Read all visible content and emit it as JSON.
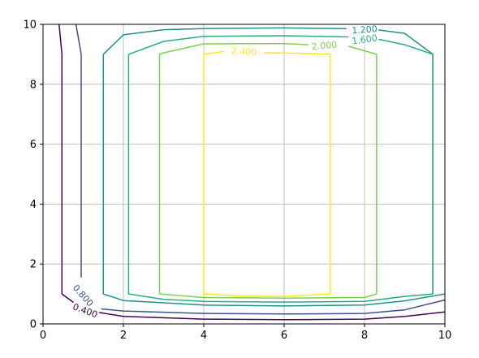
{
  "chart_data": {
    "type": "contour",
    "title": "",
    "xlabel": "",
    "ylabel": "",
    "xlim": [
      0,
      10
    ],
    "ylim": [
      0,
      10
    ],
    "grid": true,
    "x_ticks": [
      0,
      2,
      4,
      6,
      8,
      10
    ],
    "y_ticks": [
      0,
      2,
      4,
      6,
      8,
      10
    ],
    "x_tick_labels": [
      "0",
      "2",
      "4",
      "6",
      "8",
      "10"
    ],
    "y_tick_labels": [
      "0",
      "2",
      "4",
      "6",
      "8",
      "10"
    ],
    "levels": [
      {
        "level": 0.4,
        "label": "0.400",
        "color": "#440154",
        "segments": [
          [
            [
              0.4,
              10
            ],
            [
              0.47,
              9
            ],
            [
              0.47,
              1
            ],
            [
              0.9,
              0.58
            ],
            [
              1.4,
              0.38
            ],
            [
              2,
              0.25
            ],
            [
              4,
              0.16
            ],
            [
              6,
              0.14
            ],
            [
              8,
              0.16
            ],
            [
              9,
              0.25
            ],
            [
              10,
              0.4
            ]
          ]
        ]
      },
      {
        "level": 0.8,
        "label": "0.800",
        "color": "#3b528b",
        "segments": [
          [
            [
              0.82,
              10
            ],
            [
              0.95,
              9
            ],
            [
              0.95,
              1.55
            ]
          ],
          [
            [
              1.45,
              0.5
            ],
            [
              2,
              0.43
            ],
            [
              4,
              0.35
            ],
            [
              6,
              0.33
            ],
            [
              8,
              0.35
            ],
            [
              9,
              0.47
            ],
            [
              10,
              0.8
            ]
          ]
        ]
      },
      {
        "level": 1.2,
        "label": "1.200",
        "color": "#21908d",
        "segments": [
          [
            [
              7.55,
              9.86
            ],
            [
              6,
              9.88
            ],
            [
              4,
              9.86
            ],
            [
              3,
              9.82
            ],
            [
              2,
              9.65
            ],
            [
              1.5,
              9
            ],
            [
              1.5,
              1
            ],
            [
              2,
              0.78
            ],
            [
              4,
              0.63
            ],
            [
              6,
              0.6
            ],
            [
              8,
              0.63
            ],
            [
              9,
              0.77
            ],
            [
              10,
              1
            ]
          ]
        ],
        "tail_segments": [
          [
            [
              8.3,
              9.82
            ],
            [
              9,
              9.7
            ],
            [
              9.7,
              9
            ],
            [
              9.7,
              1
            ]
          ]
        ]
      },
      {
        "level": 1.6,
        "label": "1.600",
        "color": "#27ad81",
        "segments": [
          [
            [
              7.6,
              9.58
            ],
            [
              6,
              9.62
            ],
            [
              4,
              9.6
            ],
            [
              3,
              9.43
            ],
            [
              2.13,
              9
            ],
            [
              2.13,
              1
            ],
            [
              3,
              0.82
            ],
            [
              4,
              0.75
            ],
            [
              6,
              0.73
            ],
            [
              8,
              0.75
            ],
            [
              9,
              0.92
            ],
            [
              9.7,
              1
            ]
          ]
        ],
        "tail_segments": [
          [
            [
              8.35,
              9.5
            ],
            [
              9,
              9.32
            ],
            [
              9.7,
              9
            ]
          ]
        ]
      },
      {
        "level": 2.0,
        "label": "2.000",
        "color": "#7ad151",
        "segments": [
          [
            [
              6.6,
              9.32
            ],
            [
              6,
              9.36
            ],
            [
              4,
              9.35
            ],
            [
              3,
              9.05
            ],
            [
              2.9,
              9
            ],
            [
              2.9,
              1
            ],
            [
              4,
              0.88
            ],
            [
              6,
              0.86
            ],
            [
              8,
              0.88
            ],
            [
              8.3,
              1
            ],
            [
              8.3,
              9
            ],
            [
              7.6,
              9.27
            ]
          ]
        ]
      },
      {
        "level": 2.4,
        "label": "2.400",
        "color": "#fde725",
        "segments": [
          [
            [
              4,
              9
            ],
            [
              4,
              1
            ],
            [
              5,
              0.93
            ],
            [
              6,
              0.92
            ],
            [
              7.15,
              1
            ],
            [
              7.15,
              9
            ],
            [
              6,
              9.05
            ],
            [
              5.5,
              9.05
            ]
          ],
          [
            [
              4,
              9
            ],
            [
              4.5,
              9.1
            ]
          ]
        ]
      }
    ],
    "contour_labels": [
      {
        "text": "0.400",
        "x": 1.05,
        "y": 0.45,
        "angle": 20,
        "color": "#440154"
      },
      {
        "text": "0.800",
        "x": 1.0,
        "y": 0.95,
        "angle": 48,
        "color": "#3b528b"
      },
      {
        "text": "1.200",
        "x": 8.0,
        "y": 9.83,
        "angle": -4,
        "color": "#21908d"
      },
      {
        "text": "1.600",
        "x": 8.0,
        "y": 9.5,
        "angle": -8,
        "color": "#27ad81"
      },
      {
        "text": "2.000",
        "x": 7.0,
        "y": 9.3,
        "angle": -5,
        "color": "#7ad151"
      },
      {
        "text": "2.400",
        "x": 5.0,
        "y": 9.1,
        "angle": 3,
        "color": "#fde725"
      }
    ]
  }
}
